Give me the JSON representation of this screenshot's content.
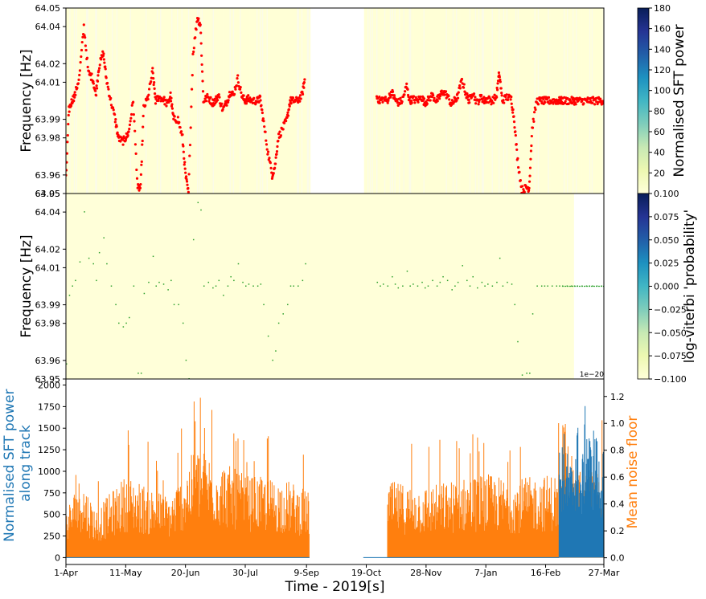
{
  "chart_data": [
    {
      "type": "scatter",
      "panel": "top",
      "ylabel": "Frequency [Hz]",
      "ylim": [
        63.95,
        64.05
      ],
      "yticks": [
        "63.95",
        "63.96",
        "63.98",
        "63.99",
        "64.01",
        "64.02",
        "64.04",
        "64.05"
      ],
      "ytick_values": [
        63.95,
        63.96,
        63.98,
        63.99,
        64.01,
        64.02,
        64.04,
        64.05
      ],
      "background": "Normalised SFT power spectrogram (mostly low values, pale yellow)",
      "series": [
        {
          "marker_color": "#ff0000",
          "x_day_of_range": [
            0,
            2,
            4,
            6,
            9,
            12,
            15,
            18,
            20,
            22,
            25,
            27,
            30,
            33,
            35,
            38,
            40,
            42,
            45,
            48,
            50,
            52,
            55,
            58,
            60,
            62,
            65,
            68,
            70,
            72,
            75,
            78,
            80,
            82,
            85,
            88,
            90,
            92,
            95,
            98,
            100,
            102,
            105,
            108,
            110,
            112,
            115,
            118,
            120,
            122,
            125,
            128,
            130,
            132,
            135,
            138,
            140,
            142,
            145,
            148,
            150,
            152,
            155,
            158,
            160,
            162,
            165,
            168,
            170,
            172,
            175,
            178,
            180,
            182,
            185,
            188,
            190,
            192,
            195,
            198,
            200,
            202,
            205,
            208,
            210,
            212,
            215,
            218,
            220,
            222,
            225,
            228,
            230,
            232,
            235,
            238,
            240,
            242,
            245,
            248,
            250,
            252,
            255,
            258,
            260,
            262,
            265,
            268,
            270,
            272,
            275,
            278,
            280,
            282,
            285,
            288,
            290,
            292,
            295,
            298,
            300,
            302,
            305,
            308,
            310,
            312,
            315,
            318,
            320,
            322,
            325,
            328,
            330,
            332,
            335,
            338,
            340,
            342,
            345,
            348,
            350,
            352,
            355,
            358,
            360
          ],
          "frequency_hz": [
            63.958,
            63.995,
            64.0,
            64.003,
            64.013,
            64.04,
            64.015,
            64.012,
            64.003,
            64.018,
            64.026,
            64.012,
            64.0,
            63.99,
            63.98,
            63.978,
            63.98,
            63.983,
            64.0,
            63.953,
            63.953,
            63.996,
            64.002,
            64.016,
            64.0,
            64.002,
            64.001,
            63.998,
            64.003,
            63.99,
            63.99,
            63.98,
            63.96,
            63.95,
            64.025,
            64.045,
            64.041,
            64.0,
            64.002,
            63.999,
            64.0,
            64.003,
            63.995,
            64.0,
            64.005,
            64.003,
            64.012,
            64.002,
            64.0,
            64.001,
            64.0,
            64.0,
            64.001,
            63.99,
            63.973,
            63.96,
            63.965,
            63.98,
            63.985,
            63.99,
            64.0,
            64.0,
            64.0,
            64.003,
            64.012,
            null,
            null,
            null,
            null,
            null,
            null,
            null,
            null,
            null,
            null,
            null,
            null,
            null,
            null,
            null,
            null,
            null,
            null,
            64.002,
            64.0,
            64.001,
            64.0,
            64.005,
            64.001,
            63.999,
            64.0,
            64.008,
            64.0,
            64.001,
            64.0,
            64.002,
            63.999,
            64.0,
            64.003,
            64.0,
            64.002,
            64.005,
            64.003,
            63.998,
            64.0,
            64.002,
            64.011,
            64.003,
            64.0,
            64.005,
            63.999,
            64.002,
            64.0,
            64.001,
            64.0,
            64.002,
            64.015,
            64.0,
            64.002,
            64.001,
            63.99,
            63.97,
            63.952,
            63.953,
            63.953,
            63.985,
            64.0,
            64.0,
            64.0,
            64.0,
            64.0,
            64.0,
            64.0,
            64.0,
            64.0,
            64.0,
            64.0,
            64.0,
            64.0,
            64.0,
            64.0,
            64.0,
            64.0,
            64.0,
            64.0,
            64.0,
            64.0
          ]
        }
      ],
      "colorbar": {
        "label": "Normalised SFT power",
        "ticks": [
          "20",
          "40",
          "60",
          "80",
          "100",
          "120",
          "140",
          "160",
          "180"
        ],
        "tick_values": [
          20,
          40,
          60,
          80,
          100,
          120,
          140,
          160,
          180
        ],
        "range": [
          0,
          180
        ],
        "cmap": "YlGnBu"
      }
    },
    {
      "type": "heatmap",
      "panel": "middle",
      "ylabel": "Frequency [Hz]",
      "ylim": [
        63.95,
        64.05
      ],
      "yticks": [
        "63.95",
        "63.96",
        "63.98",
        "63.99",
        "64.01",
        "64.02",
        "64.04",
        "64.05"
      ],
      "ytick_values": [
        63.95,
        63.96,
        63.98,
        63.99,
        64.01,
        64.02,
        64.04,
        64.05
      ],
      "offset_text": "1e−20",
      "highlight_color": "#2ca02c",
      "colorbar": {
        "label": "log-viterbi 'probability'",
        "ticks": [
          "0.100",
          "0.075",
          "0.050",
          "0.025",
          "0.000",
          "−0.025",
          "−0.050",
          "−0.075",
          "−0.100"
        ],
        "tick_values": [
          0.1,
          0.075,
          0.05,
          0.025,
          0.0,
          -0.025,
          -0.05,
          -0.075,
          -0.1
        ],
        "range": [
          -0.1,
          0.1
        ],
        "cmap": "YlGnBu"
      }
    },
    {
      "type": "line",
      "panel": "bottom",
      "xlabel": "Time - 2019[s]",
      "xticks": [
        "1-Apr",
        "11-May",
        "20-Jun",
        "30-Jul",
        "9-Sep",
        "19-Oct",
        "28-Nov",
        "7-Jan",
        "16-Feb",
        "27-Mar"
      ],
      "xtick_days": [
        0,
        40,
        80,
        120,
        161,
        201,
        241,
        281,
        321,
        360
      ],
      "ylabel": "Normalised SFT power\nalong track",
      "ylabel_color": "#1f77b4",
      "ylim": [
        -80,
        2070
      ],
      "yticks": [
        "0",
        "250",
        "500",
        "750",
        "1000",
        "1250",
        "1500",
        "1750",
        "2000"
      ],
      "ytick_values": [
        0,
        250,
        500,
        750,
        1000,
        1250,
        1500,
        1750,
        2000
      ],
      "y2label": "Mean noise floor",
      "y2label_color": "#ff7f0e",
      "y2lim": [
        -0.05,
        1.33
      ],
      "y2ticks": [
        "0.0",
        "0.2",
        "0.4",
        "0.6",
        "0.8",
        "1.0",
        "1.2"
      ],
      "y2tick_values": [
        0.0,
        0.2,
        0.4,
        0.6,
        0.8,
        1.0,
        1.2
      ],
      "series": [
        {
          "name": "Normalised SFT power along track",
          "color": "#1f77b4",
          "axis": "left",
          "x_day": [
            0,
            100,
            182,
            330,
            333,
            336,
            339,
            342,
            345,
            348,
            351,
            354,
            357,
            360
          ],
          "values": [
            0,
            0,
            0,
            1300,
            1500,
            1200,
            1100,
            1700,
            1000,
            1950,
            1400,
            1600,
            1200,
            1300
          ]
        },
        {
          "name": "Mean noise floor",
          "color": "#ff7f0e",
          "axis": "right",
          "x_day": [
            0,
            10,
            20,
            40,
            70,
            87,
            120,
            150,
            163,
            183,
            199,
            215,
            240,
            280,
            300,
            320,
            345,
            360
          ],
          "values": [
            0.55,
            0.95,
            0.55,
            0.95,
            0.7,
            1.28,
            0.95,
            0.88,
            0.75,
            null,
            null,
            0.88,
            0.82,
            0.97,
            0.9,
            0.95,
            1.02,
            0.99
          ]
        }
      ]
    }
  ]
}
